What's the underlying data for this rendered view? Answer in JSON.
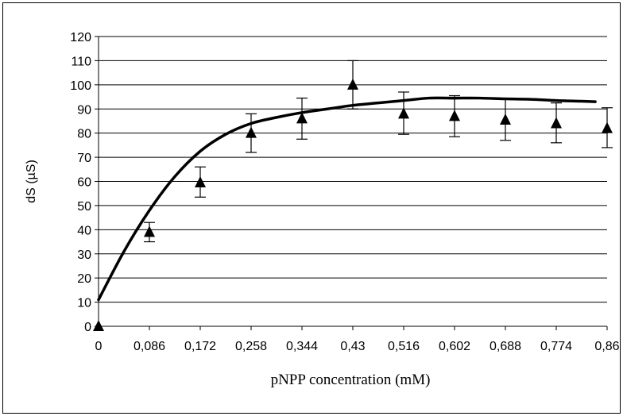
{
  "chart_data": {
    "type": "scatter",
    "title": "",
    "xlabel": "pNPP concentration (mM)",
    "ylabel": "dS (µS)",
    "ylim": [
      0,
      120
    ],
    "xlim": [
      0,
      0.86
    ],
    "y_ticks": [
      0,
      10,
      20,
      30,
      40,
      50,
      60,
      70,
      80,
      90,
      100,
      110,
      120
    ],
    "x_tick_labels": [
      "0",
      "0,086",
      "0,172",
      "0,258",
      "0,344",
      "0,43",
      "0,516",
      "0,602",
      "0,688",
      "0,774",
      "0,86"
    ],
    "x_tick_values": [
      0,
      0.086,
      0.172,
      0.258,
      0.344,
      0.43,
      0.516,
      0.602,
      0.688,
      0.774,
      0.86
    ],
    "grid": true,
    "legend": "none",
    "series": [
      {
        "kind": "points_with_error_bars",
        "marker": "triangle",
        "color": "#000000",
        "x": [
          0,
          0.086,
          0.172,
          0.258,
          0.344,
          0.43,
          0.516,
          0.602,
          0.688,
          0.774,
          0.86
        ],
        "y": [
          0,
          39,
          59.5,
          80,
          86,
          100,
          88,
          87,
          85.5,
          84,
          82
        ],
        "y_err_upper": [
          0,
          43,
          66,
          88,
          94.5,
          110,
          97,
          95.5,
          94,
          92.5,
          90.5
        ],
        "y_err_lower": [
          0,
          35,
          53.5,
          72,
          77.5,
          90,
          79.5,
          78.5,
          77,
          76,
          74
        ]
      },
      {
        "kind": "fit_curve",
        "color": "#000000",
        "x": [
          0,
          0.043,
          0.086,
          0.129,
          0.172,
          0.215,
          0.258,
          0.301,
          0.344,
          0.387,
          0.43,
          0.473,
          0.516,
          0.559,
          0.602,
          0.645,
          0.688,
          0.731,
          0.774,
          0.817,
          0.84
        ],
        "y": [
          11,
          31,
          48,
          62,
          72.5,
          79.5,
          84,
          86.5,
          88.5,
          90,
          91.5,
          92.5,
          93.5,
          94.5,
          94.5,
          94.5,
          94.2,
          94,
          93.5,
          93.2,
          93
        ]
      }
    ]
  }
}
